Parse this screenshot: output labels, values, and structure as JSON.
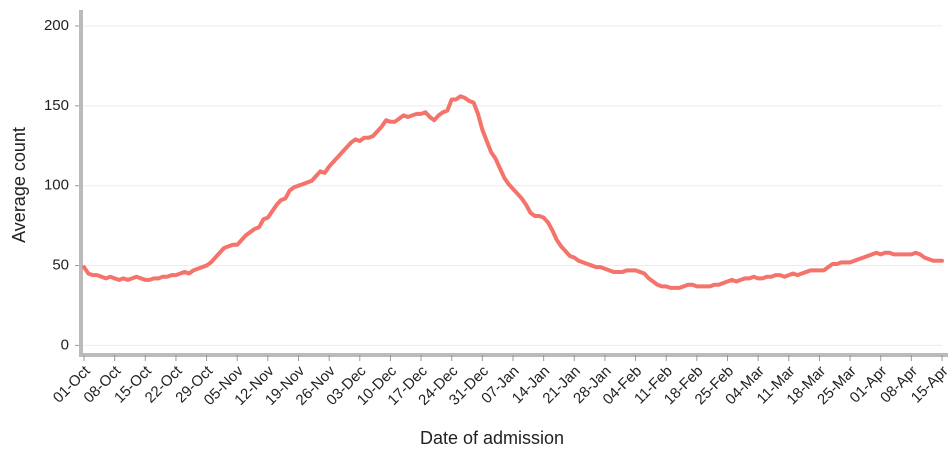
{
  "chart_data": {
    "type": "line",
    "y_label": "Average count",
    "x_label": "Date of admission",
    "categories": [
      "01-Oct",
      null,
      null,
      null,
      null,
      null,
      null,
      "08-Oct",
      null,
      null,
      null,
      null,
      null,
      null,
      "15-Oct",
      null,
      null,
      null,
      null,
      null,
      null,
      "22-Oct",
      null,
      null,
      null,
      null,
      null,
      null,
      "29-Oct",
      null,
      null,
      null,
      null,
      null,
      null,
      "05-Nov",
      null,
      null,
      null,
      null,
      null,
      null,
      "12-Nov",
      null,
      null,
      null,
      null,
      null,
      null,
      "19-Nov",
      null,
      null,
      null,
      null,
      null,
      null,
      "26-Nov",
      null,
      null,
      null,
      null,
      null,
      null,
      "03-Dec",
      null,
      null,
      null,
      null,
      null,
      null,
      "10-Dec",
      null,
      null,
      null,
      null,
      null,
      null,
      "17-Dec",
      null,
      null,
      null,
      null,
      null,
      null,
      "24-Dec",
      null,
      null,
      null,
      null,
      null,
      null,
      "31-Dec",
      null,
      null,
      null,
      null,
      null,
      null,
      "07-Jan",
      null,
      null,
      null,
      null,
      null,
      null,
      "14-Jan",
      null,
      null,
      null,
      null,
      null,
      null,
      "21-Jan",
      null,
      null,
      null,
      null,
      null,
      null,
      "28-Jan",
      null,
      null,
      null,
      null,
      null,
      null,
      "04-Feb",
      null,
      null,
      null,
      null,
      null,
      null,
      "11-Feb",
      null,
      null,
      null,
      null,
      null,
      null,
      "18-Feb",
      null,
      null,
      null,
      null,
      null,
      null,
      "25-Feb",
      null,
      null,
      null,
      null,
      null,
      null,
      "04-Mar",
      null,
      null,
      null,
      null,
      null,
      null,
      "11-Mar",
      null,
      null,
      null,
      null,
      null,
      null,
      "18-Mar",
      null,
      null,
      null,
      null,
      null,
      null,
      "25-Mar",
      null,
      null,
      null,
      null,
      null,
      null,
      "01-Apr",
      null,
      null,
      null,
      null,
      null,
      null,
      "08-Apr",
      null,
      null,
      null,
      null,
      null,
      null,
      "15-Apr"
    ],
    "values": [
      49,
      45,
      44,
      44,
      43,
      42,
      43,
      42,
      41,
      42,
      41,
      42,
      43,
      42,
      41,
      41,
      42,
      42,
      43,
      43,
      44,
      44,
      45,
      46,
      45,
      47,
      48,
      49,
      50,
      52,
      55,
      58,
      61,
      62,
      63,
      63,
      66,
      69,
      71,
      73,
      74,
      79,
      80,
      84,
      88,
      91,
      92,
      97,
      99,
      100,
      101,
      102,
      103,
      106,
      109,
      108,
      112,
      115,
      118,
      121,
      124,
      127,
      129,
      128,
      130,
      130,
      131,
      134,
      137,
      141,
      140,
      140,
      142,
      144,
      143,
      144,
      145,
      145,
      146,
      143,
      141,
      144,
      146,
      147,
      154,
      154,
      156,
      155,
      153,
      152,
      145,
      135,
      128,
      121,
      117,
      111,
      105,
      101,
      98,
      95,
      92,
      88,
      83,
      81,
      81,
      80,
      77,
      72,
      66,
      62,
      59,
      56,
      55,
      53,
      52,
      51,
      50,
      49,
      49,
      48,
      47,
      46,
      46,
      46,
      47,
      47,
      47,
      46,
      45,
      42,
      40,
      38,
      37,
      37,
      36,
      36,
      36,
      37,
      38,
      38,
      37,
      37,
      37,
      37,
      38,
      38,
      39,
      40,
      41,
      40,
      41,
      42,
      42,
      43,
      42,
      42,
      43,
      43,
      44,
      44,
      43,
      44,
      45,
      44,
      45,
      46,
      47,
      47,
      47,
      47,
      49,
      51,
      51,
      52,
      52,
      52,
      53,
      54,
      55,
      56,
      57,
      58,
      57,
      58,
      58,
      57,
      57,
      57,
      57,
      57,
      58,
      57,
      55,
      54,
      53,
      53,
      53
    ],
    "color": "#f4736b",
    "ylim": [
      -6,
      210
    ],
    "yticks": [
      0,
      50,
      100,
      150,
      200
    ],
    "grid": true
  }
}
